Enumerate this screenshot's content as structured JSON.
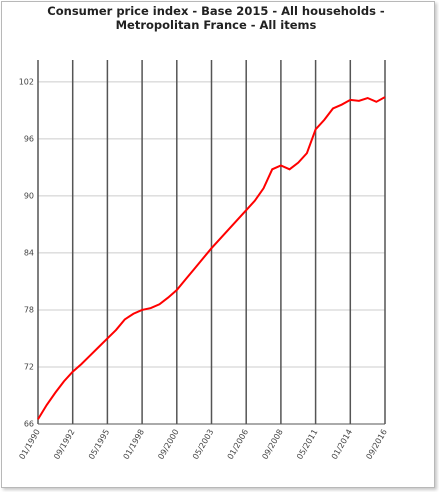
{
  "chart_data": {
    "type": "line",
    "title": "Consumer price index - Base 2015 - All households - Metropolitan France - All items",
    "categories": [
      "01/1990",
      null,
      null,
      null,
      "09/1992",
      null,
      null,
      null,
      "05/1995",
      null,
      null,
      null,
      "01/1998",
      null,
      null,
      null,
      "09/2000",
      null,
      null,
      null,
      "05/2003",
      null,
      null,
      null,
      "01/2006",
      null,
      null,
      null,
      "09/2008",
      null,
      null,
      null,
      "05/2011",
      null,
      null,
      null,
      "01/2014",
      null,
      null,
      null,
      "09/2016"
    ],
    "series": [
      {
        "color": "#ff0000",
        "values": [
          66.5,
          68.0,
          69.3,
          70.5,
          71.5,
          72.3,
          73.2,
          74.1,
          75.0,
          75.9,
          77.0,
          77.6,
          78.0,
          78.2,
          78.6,
          79.3,
          80.1,
          81.2,
          82.3,
          83.4,
          84.5,
          85.5,
          86.5,
          87.5,
          88.5,
          89.5,
          90.8,
          92.8,
          93.2,
          92.8,
          93.5,
          94.5,
          97.0,
          98.0,
          99.2,
          99.6,
          100.1,
          100.0,
          100.3,
          99.9,
          100.4
        ]
      }
    ],
    "ylim": [
      66,
      104.3
    ],
    "yticks": [
      66,
      72,
      78,
      84,
      90,
      96,
      102
    ],
    "grid": true
  }
}
